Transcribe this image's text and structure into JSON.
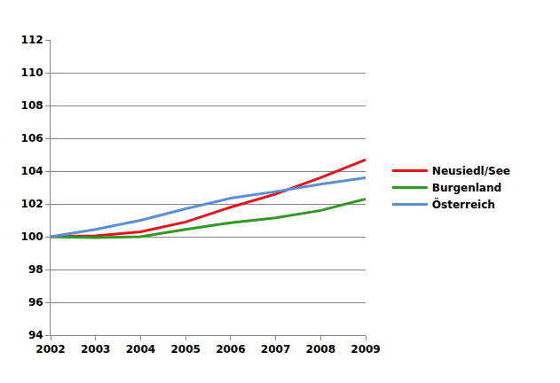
{
  "chart_data": {
    "type": "line",
    "x": [
      2002,
      2003,
      2004,
      2005,
      2006,
      2007,
      2008,
      2009
    ],
    "series": [
      {
        "name": "Neusiedl/See",
        "color": "#e8121a",
        "values": [
          100,
          100.05,
          100.3,
          100.9,
          101.8,
          102.6,
          103.6,
          104.7
        ]
      },
      {
        "name": "Burgenland",
        "color": "#2e9a1f",
        "values": [
          100,
          99.95,
          100.0,
          100.45,
          100.85,
          101.15,
          101.6,
          102.3
        ]
      },
      {
        "name": "Österreich",
        "color": "#5a8fd8",
        "values": [
          100,
          100.45,
          101.0,
          101.7,
          102.35,
          102.75,
          103.2,
          103.6
        ]
      }
    ],
    "xlim": [
      2002,
      2009
    ],
    "xticks": [
      2002,
      2003,
      2004,
      2005,
      2006,
      2007,
      2008,
      2009
    ],
    "ylim": [
      94,
      112
    ],
    "yticks": [
      94,
      96,
      98,
      100,
      102,
      104,
      106,
      108,
      110,
      112
    ],
    "grid": true,
    "legend": "right"
  }
}
